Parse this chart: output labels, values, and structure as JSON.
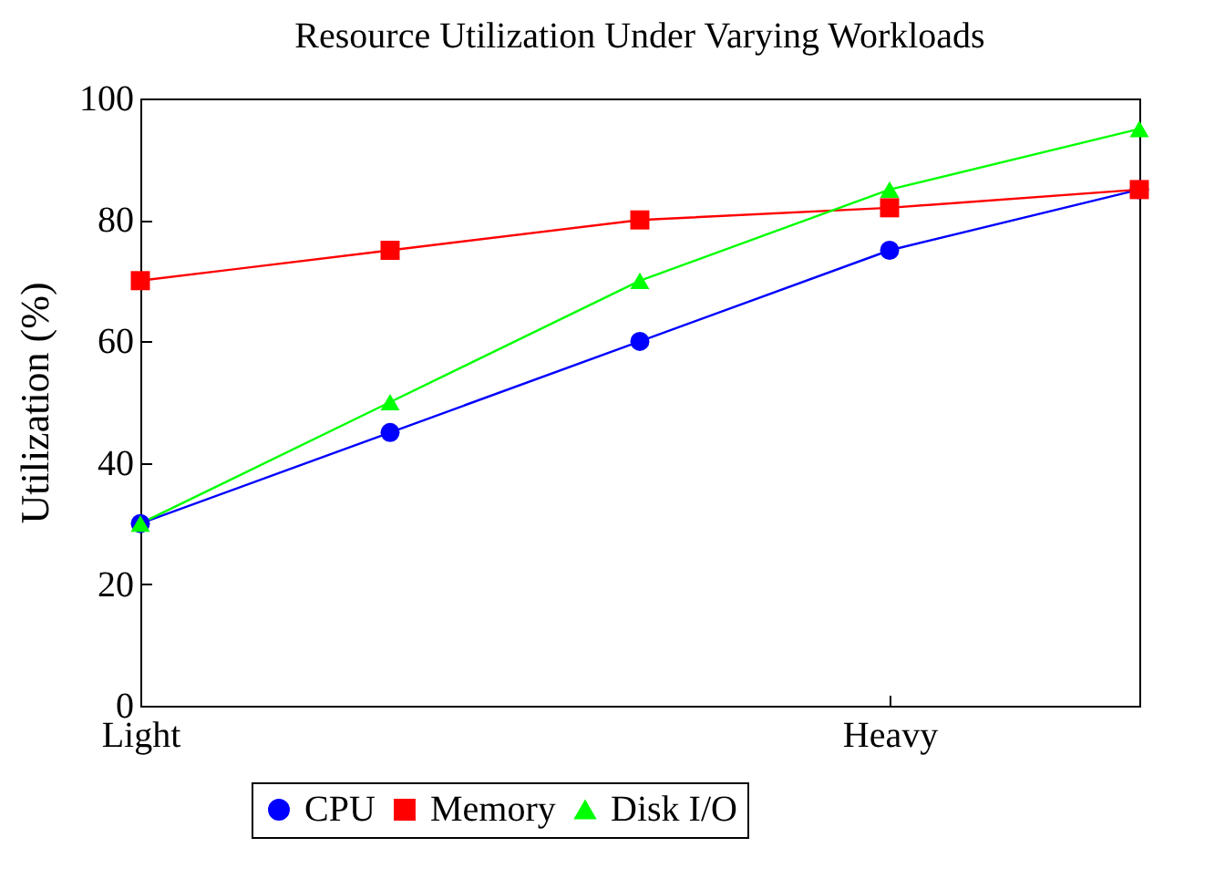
{
  "chart_data": {
    "type": "line",
    "title": "Resource Utilization Under Varying Workloads",
    "ylabel": "Utilization (%)",
    "categories": [
      "Light",
      null,
      null,
      "Heavy",
      null
    ],
    "series": [
      {
        "name": "CPU",
        "color": "#0000ff",
        "marker": "circle",
        "values": [
          30,
          45,
          60,
          75,
          85
        ]
      },
      {
        "name": "Memory",
        "color": "#ff0000",
        "marker": "square",
        "values": [
          70,
          75,
          80,
          82,
          85
        ]
      },
      {
        "name": "Disk I/O",
        "color": "#00ff00",
        "marker": "triangle",
        "values": [
          30,
          50,
          70,
          85,
          95
        ]
      }
    ],
    "ylim": [
      0,
      100
    ],
    "yticks": [
      0,
      20,
      40,
      60,
      80,
      100
    ],
    "grid": false,
    "legend": "bottom",
    "line_style": "solid"
  }
}
